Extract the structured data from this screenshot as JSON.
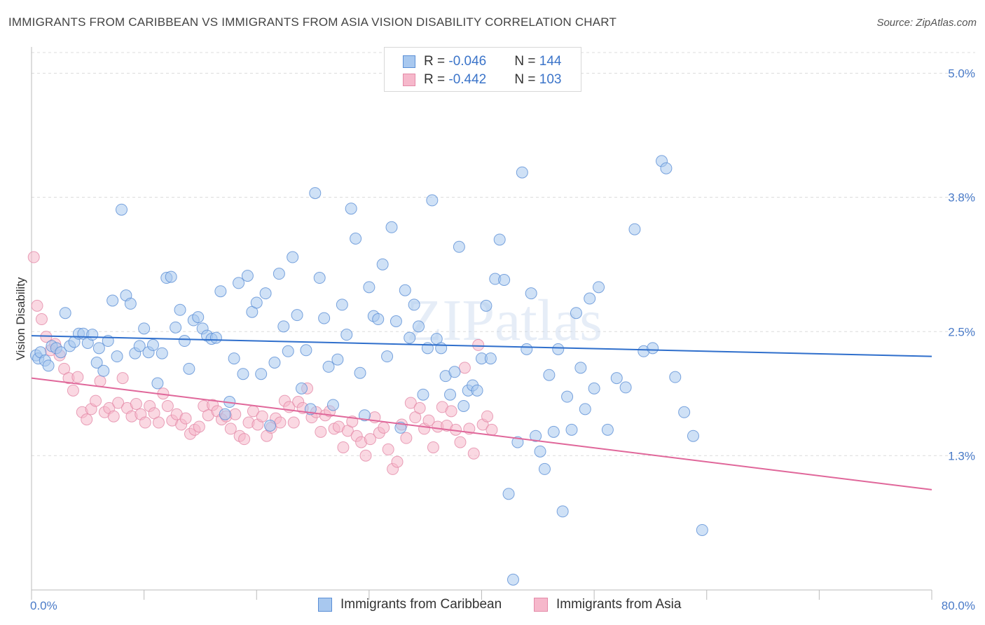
{
  "header": {
    "title": "IMMIGRANTS FROM CARIBBEAN VS IMMIGRANTS FROM ASIA VISION DISABILITY CORRELATION CHART",
    "source": "Source: ZipAtlas.com"
  },
  "watermark": "ZIPatlas",
  "legend": {
    "rows": [
      {
        "r_label": "R = ",
        "r_value": "-0.046",
        "n_label": "N = ",
        "n_value": "144"
      },
      {
        "r_label": "R = ",
        "r_value": "-0.442",
        "n_label": "N = ",
        "n_value": "103"
      }
    ]
  },
  "colors": {
    "blue_fill": "#a8c8ef",
    "blue_stroke": "#5b8fd6",
    "blue_line": "#2f6fcc",
    "pink_fill": "#f6b8cb",
    "pink_stroke": "#e48aa8",
    "pink_line": "#e0679a",
    "grid": "#dcdcdc",
    "tick_text": "#4a7bc8"
  },
  "chart_data": {
    "type": "scatter",
    "title": "IMMIGRANTS FROM CARIBBEAN VS IMMIGRANTS FROM ASIA VISION DISABILITY CORRELATION CHART",
    "xlabel": "",
    "ylabel": "Vision Disability",
    "xlim": [
      0,
      80
    ],
    "ylim": [
      0,
      5.2
    ],
    "x_tick_labels": [
      "0.0%",
      "80.0%"
    ],
    "y_ticks": [
      1.3,
      2.5,
      3.8,
      5.0
    ],
    "y_tick_labels": [
      "1.3%",
      "2.5%",
      "3.8%",
      "5.0%"
    ],
    "grid": true,
    "legend_position": "bottom",
    "series": [
      {
        "name": "Immigrants from Caribbean",
        "color": "#a8c8ef",
        "trend": {
          "x": [
            0,
            80
          ],
          "y": [
            2.46,
            2.26
          ]
        },
        "points": [
          [
            0.4,
            2.27
          ],
          [
            0.6,
            2.24
          ],
          [
            0.8,
            2.3
          ],
          [
            1.2,
            2.22
          ],
          [
            1.5,
            2.17
          ],
          [
            1.8,
            2.36
          ],
          [
            2.2,
            2.34
          ],
          [
            2.6,
            2.3
          ],
          [
            3.0,
            2.68
          ],
          [
            3.4,
            2.36
          ],
          [
            3.8,
            2.4
          ],
          [
            4.2,
            2.48
          ],
          [
            4.6,
            2.48
          ],
          [
            5.0,
            2.39
          ],
          [
            5.4,
            2.47
          ],
          [
            5.8,
            2.2
          ],
          [
            6.0,
            2.34
          ],
          [
            6.4,
            2.12
          ],
          [
            6.8,
            2.41
          ],
          [
            7.2,
            2.8
          ],
          [
            7.6,
            2.26
          ],
          [
            8.0,
            3.68
          ],
          [
            8.4,
            2.85
          ],
          [
            8.8,
            2.77
          ],
          [
            9.2,
            2.29
          ],
          [
            9.6,
            2.36
          ],
          [
            10.0,
            2.53
          ],
          [
            10.4,
            2.3
          ],
          [
            10.8,
            2.37
          ],
          [
            11.2,
            2.0
          ],
          [
            11.6,
            2.29
          ],
          [
            12.0,
            3.02
          ],
          [
            12.4,
            3.03
          ],
          [
            12.8,
            2.54
          ],
          [
            13.2,
            2.71
          ],
          [
            13.6,
            2.41
          ],
          [
            14.0,
            2.14
          ],
          [
            14.4,
            2.61
          ],
          [
            14.8,
            2.64
          ],
          [
            15.2,
            2.53
          ],
          [
            15.6,
            2.46
          ],
          [
            16.0,
            2.43
          ],
          [
            16.4,
            2.44
          ],
          [
            16.8,
            2.89
          ],
          [
            17.2,
            1.7
          ],
          [
            17.6,
            1.82
          ],
          [
            18.0,
            2.24
          ],
          [
            18.4,
            2.97
          ],
          [
            18.8,
            2.09
          ],
          [
            19.2,
            3.04
          ],
          [
            19.6,
            2.69
          ],
          [
            20.0,
            2.78
          ],
          [
            20.4,
            2.09
          ],
          [
            20.8,
            2.87
          ],
          [
            21.2,
            1.59
          ],
          [
            21.6,
            2.2
          ],
          [
            22.0,
            3.06
          ],
          [
            22.4,
            2.55
          ],
          [
            22.8,
            2.31
          ],
          [
            23.2,
            3.22
          ],
          [
            23.6,
            2.66
          ],
          [
            24.0,
            1.95
          ],
          [
            24.4,
            2.32
          ],
          [
            24.8,
            1.75
          ],
          [
            25.2,
            3.84
          ],
          [
            25.6,
            3.02
          ],
          [
            26.0,
            2.63
          ],
          [
            26.4,
            2.16
          ],
          [
            26.8,
            1.79
          ],
          [
            27.2,
            2.23
          ],
          [
            27.6,
            2.76
          ],
          [
            28.0,
            2.47
          ],
          [
            28.4,
            3.69
          ],
          [
            28.8,
            3.4
          ],
          [
            29.2,
            2.1
          ],
          [
            29.6,
            1.69
          ],
          [
            30.0,
            2.93
          ],
          [
            30.4,
            2.65
          ],
          [
            30.8,
            2.62
          ],
          [
            31.2,
            3.15
          ],
          [
            31.6,
            2.26
          ],
          [
            32.0,
            3.51
          ],
          [
            32.4,
            2.6
          ],
          [
            32.8,
            1.57
          ],
          [
            33.2,
            2.9
          ],
          [
            33.6,
            2.44
          ],
          [
            34.0,
            2.76
          ],
          [
            34.4,
            2.55
          ],
          [
            34.8,
            1.89
          ],
          [
            35.2,
            2.34
          ],
          [
            35.6,
            3.77
          ],
          [
            36.0,
            2.43
          ],
          [
            36.4,
            2.34
          ],
          [
            36.8,
            2.07
          ],
          [
            37.2,
            1.89
          ],
          [
            37.6,
            2.11
          ],
          [
            38.0,
            3.32
          ],
          [
            38.4,
            1.78
          ],
          [
            38.8,
            1.93
          ],
          [
            39.2,
            1.98
          ],
          [
            39.6,
            1.93
          ],
          [
            40.0,
            2.24
          ],
          [
            40.4,
            2.75
          ],
          [
            40.8,
            2.24
          ],
          [
            41.2,
            3.01
          ],
          [
            41.6,
            3.39
          ],
          [
            42.0,
            3.0
          ],
          [
            42.4,
            0.93
          ],
          [
            42.8,
            0.1
          ],
          [
            43.2,
            1.43
          ],
          [
            43.6,
            4.04
          ],
          [
            44.0,
            2.33
          ],
          [
            44.4,
            2.87
          ],
          [
            44.8,
            1.49
          ],
          [
            45.2,
            1.34
          ],
          [
            45.6,
            1.17
          ],
          [
            46.0,
            2.08
          ],
          [
            46.4,
            1.53
          ],
          [
            46.8,
            2.33
          ],
          [
            47.2,
            0.76
          ],
          [
            47.6,
            1.87
          ],
          [
            48.0,
            1.55
          ],
          [
            48.4,
            2.68
          ],
          [
            48.8,
            2.15
          ],
          [
            49.2,
            1.75
          ],
          [
            49.6,
            2.82
          ],
          [
            50.0,
            1.95
          ],
          [
            50.4,
            2.93
          ],
          [
            51.2,
            1.55
          ],
          [
            52.0,
            2.05
          ],
          [
            52.8,
            1.96
          ],
          [
            53.6,
            3.49
          ],
          [
            54.4,
            2.31
          ],
          [
            55.2,
            2.34
          ],
          [
            56.0,
            4.15
          ],
          [
            56.4,
            4.08
          ],
          [
            57.2,
            2.06
          ],
          [
            58.0,
            1.72
          ],
          [
            58.8,
            1.49
          ],
          [
            59.6,
            0.58
          ]
        ]
      },
      {
        "name": "Immigrants from Asia",
        "color": "#f6b8cb",
        "trend": {
          "x": [
            0,
            80
          ],
          "y": [
            2.05,
            0.97
          ]
        },
        "points": [
          [
            0.2,
            3.22
          ],
          [
            0.5,
            2.75
          ],
          [
            0.9,
            2.62
          ],
          [
            1.3,
            2.45
          ],
          [
            1.7,
            2.32
          ],
          [
            2.1,
            2.38
          ],
          [
            2.5,
            2.27
          ],
          [
            2.9,
            2.14
          ],
          [
            3.3,
            2.05
          ],
          [
            3.7,
            1.93
          ],
          [
            4.1,
            2.06
          ],
          [
            4.5,
            1.72
          ],
          [
            4.9,
            1.65
          ],
          [
            5.3,
            1.75
          ],
          [
            5.7,
            1.83
          ],
          [
            6.1,
            2.02
          ],
          [
            6.5,
            1.72
          ],
          [
            6.9,
            1.76
          ],
          [
            7.3,
            1.68
          ],
          [
            7.7,
            1.81
          ],
          [
            8.1,
            2.05
          ],
          [
            8.5,
            1.76
          ],
          [
            8.9,
            1.68
          ],
          [
            9.3,
            1.8
          ],
          [
            9.7,
            1.7
          ],
          [
            10.1,
            1.62
          ],
          [
            10.5,
            1.78
          ],
          [
            10.9,
            1.71
          ],
          [
            11.3,
            1.62
          ],
          [
            11.7,
            1.9
          ],
          [
            12.1,
            1.78
          ],
          [
            12.5,
            1.64
          ],
          [
            12.9,
            1.7
          ],
          [
            13.3,
            1.6
          ],
          [
            13.7,
            1.66
          ],
          [
            14.1,
            1.51
          ],
          [
            14.5,
            1.55
          ],
          [
            14.9,
            1.58
          ],
          [
            15.3,
            1.78
          ],
          [
            15.7,
            1.69
          ],
          [
            16.1,
            1.79
          ],
          [
            16.5,
            1.73
          ],
          [
            16.9,
            1.65
          ],
          [
            17.3,
            1.68
          ],
          [
            17.7,
            1.56
          ],
          [
            18.1,
            1.7
          ],
          [
            18.5,
            1.49
          ],
          [
            18.9,
            1.46
          ],
          [
            19.3,
            1.62
          ],
          [
            19.7,
            1.73
          ],
          [
            20.1,
            1.6
          ],
          [
            20.5,
            1.68
          ],
          [
            20.9,
            1.49
          ],
          [
            21.3,
            1.57
          ],
          [
            21.7,
            1.66
          ],
          [
            22.1,
            1.62
          ],
          [
            22.5,
            1.83
          ],
          [
            22.9,
            1.77
          ],
          [
            23.3,
            1.62
          ],
          [
            23.7,
            1.82
          ],
          [
            24.1,
            1.76
          ],
          [
            24.5,
            1.95
          ],
          [
            24.9,
            1.67
          ],
          [
            25.3,
            1.72
          ],
          [
            25.7,
            1.53
          ],
          [
            26.1,
            1.69
          ],
          [
            26.5,
            1.73
          ],
          [
            26.9,
            1.56
          ],
          [
            27.3,
            1.58
          ],
          [
            27.7,
            1.38
          ],
          [
            28.1,
            1.54
          ],
          [
            28.5,
            1.63
          ],
          [
            28.9,
            1.49
          ],
          [
            29.3,
            1.43
          ],
          [
            29.7,
            1.3
          ],
          [
            30.1,
            1.46
          ],
          [
            30.5,
            1.67
          ],
          [
            30.9,
            1.52
          ],
          [
            31.3,
            1.57
          ],
          [
            31.7,
            1.36
          ],
          [
            32.1,
            1.17
          ],
          [
            32.5,
            1.24
          ],
          [
            32.9,
            1.6
          ],
          [
            33.3,
            1.47
          ],
          [
            33.7,
            1.81
          ],
          [
            34.1,
            1.67
          ],
          [
            34.5,
            1.76
          ],
          [
            34.9,
            1.56
          ],
          [
            35.3,
            1.64
          ],
          [
            35.7,
            1.38
          ],
          [
            36.1,
            1.58
          ],
          [
            36.5,
            1.77
          ],
          [
            36.9,
            1.59
          ],
          [
            37.3,
            1.73
          ],
          [
            37.7,
            1.55
          ],
          [
            38.1,
            1.43
          ],
          [
            38.5,
            2.15
          ],
          [
            38.9,
            1.56
          ],
          [
            39.3,
            1.32
          ],
          [
            39.7,
            2.37
          ],
          [
            40.1,
            1.6
          ],
          [
            40.5,
            1.68
          ],
          [
            40.9,
            1.55
          ]
        ]
      }
    ]
  },
  "bottom_legend": {
    "items": [
      "Immigrants from Caribbean",
      "Immigrants from Asia"
    ]
  }
}
